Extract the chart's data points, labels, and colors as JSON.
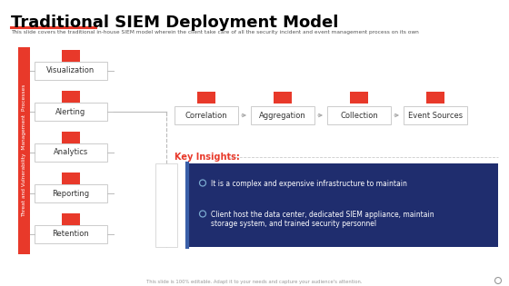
{
  "title": "Traditional SIEM Deployment Model",
  "subtitle": "This slide covers the traditional in-house SIEM model wherein the client take care of all the security incident and event management process on its own",
  "footer": "This slide is 100% editable. Adapt it to your needs and capture your audience's attention.",
  "bg_color": "#ffffff",
  "title_color": "#000000",
  "subtitle_color": "#555555",
  "accent_color": "#E8392A",
  "dark_blue": "#1F2D6E",
  "left_bar_text": "Threat and Vulnerability  Management  Processes",
  "left_boxes": [
    "Visualization",
    "Alerting",
    "Analytics",
    "Reporting",
    "Retention"
  ],
  "top_boxes": [
    "Correlation",
    "Aggregation",
    "Collection",
    "Event Sources"
  ],
  "key_insights_label": "Key Insights:",
  "key_insights_bullets": [
    "It is a complex and expensive infrastructure to maintain",
    "Client host the data center, dedicated SIEM appliance, maintain\nstorage system, and trained security personnel"
  ]
}
